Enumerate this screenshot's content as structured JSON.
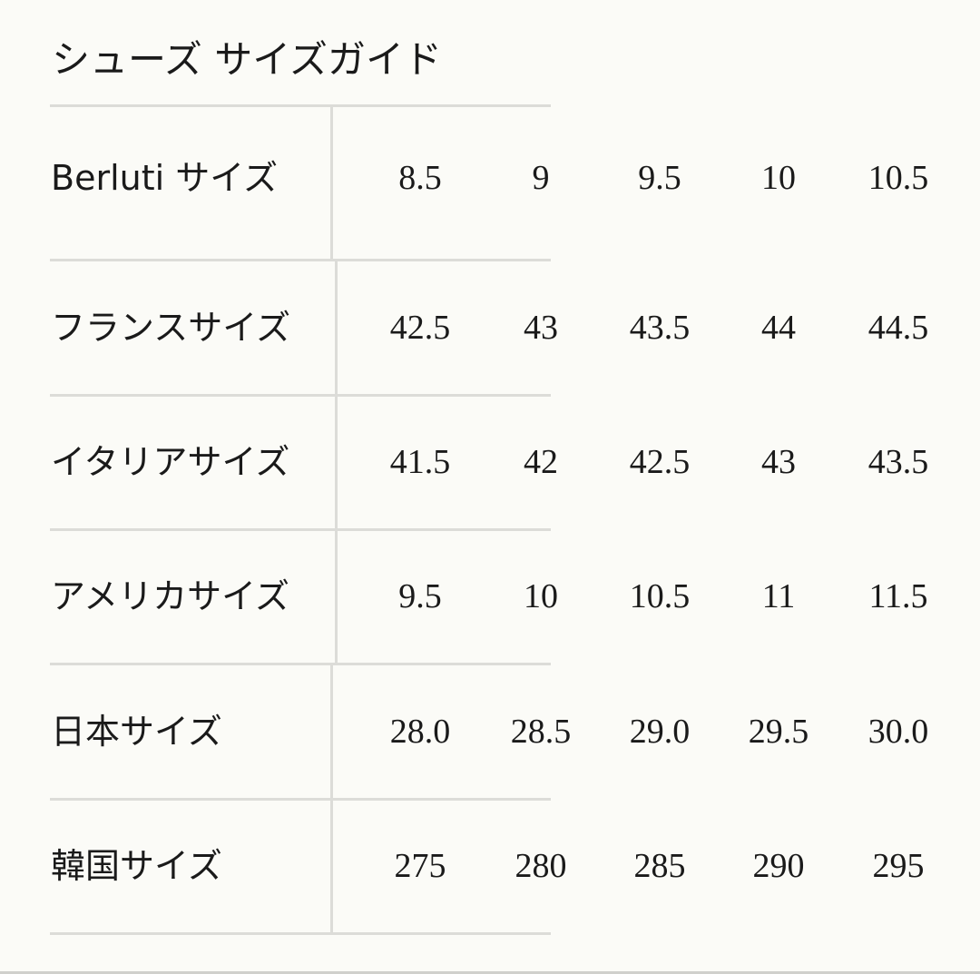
{
  "title": "シューズ サイズガイド",
  "table": {
    "rows": [
      {
        "label": "Berluti サイズ",
        "values": [
          "8.5",
          "9",
          "9.5",
          "10",
          "10.5"
        ]
      },
      {
        "label": "フランスサイズ",
        "values": [
          "42.5",
          "43",
          "43.5",
          "44",
          "44.5"
        ]
      },
      {
        "label": "イタリアサイズ",
        "values": [
          "41.5",
          "42",
          "42.5",
          "43",
          "43.5"
        ]
      },
      {
        "label": "アメリカサイズ",
        "values": [
          "9.5",
          "10",
          "10.5",
          "11",
          "11.5"
        ]
      },
      {
        "label": "日本サイズ",
        "values": [
          "28.0",
          "28.5",
          "29.0",
          "29.5",
          "30.0"
        ]
      },
      {
        "label": "韓国サイズ",
        "values": [
          "275",
          "280",
          "285",
          "290",
          "295"
        ]
      }
    ]
  }
}
